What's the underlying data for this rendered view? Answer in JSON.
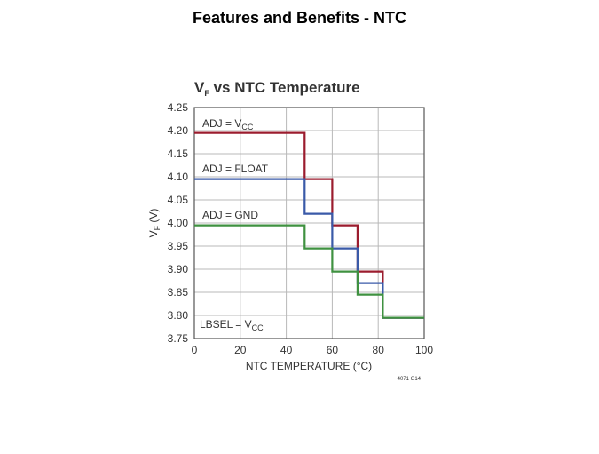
{
  "slide": {
    "title": "Features and Benefits - NTC"
  },
  "chart_data": {
    "type": "line",
    "title": "VF vs NTC Temperature",
    "title_main": "V",
    "title_sub": "F",
    "title_rest": " vs NTC Temperature",
    "xlabel": "NTC TEMPERATURE (°C)",
    "ylabel": "VF (V)",
    "ylabel_main": "V",
    "ylabel_sub": "F",
    "ylabel_rest": " (V)",
    "xlim": [
      0,
      100
    ],
    "ylim": [
      3.75,
      4.25
    ],
    "x_ticks": [
      "0",
      "20",
      "40",
      "60",
      "80",
      "100"
    ],
    "y_ticks": [
      "4.25",
      "4.20",
      "4.15",
      "4.10",
      "4.05",
      "4.00",
      "3.95",
      "3.90",
      "3.85",
      "3.80",
      "3.75"
    ],
    "grid": true,
    "note": "4071 G14",
    "series": [
      {
        "name": "ADJ = VCC",
        "label_main": "ADJ = V",
        "label_sub": "CC",
        "color": "#9b1c2e",
        "points": [
          [
            0,
            4.195
          ],
          [
            48,
            4.195
          ],
          [
            48,
            4.095
          ],
          [
            60,
            4.095
          ],
          [
            60,
            3.995
          ],
          [
            71,
            3.995
          ],
          [
            71,
            3.895
          ],
          [
            82,
            3.895
          ],
          [
            82,
            3.795
          ],
          [
            100,
            3.795
          ]
        ]
      },
      {
        "name": "ADJ = FLOAT",
        "label_main": "ADJ = FLOAT",
        "label_sub": "",
        "color": "#3a5aa8",
        "points": [
          [
            0,
            4.095
          ],
          [
            48,
            4.095
          ],
          [
            48,
            4.02
          ],
          [
            60,
            4.02
          ],
          [
            60,
            3.945
          ],
          [
            71,
            3.945
          ],
          [
            71,
            3.87
          ],
          [
            82,
            3.87
          ],
          [
            82,
            3.795
          ],
          [
            100,
            3.795
          ]
        ]
      },
      {
        "name": "ADJ = GND",
        "label_main": "ADJ = GND",
        "label_sub": "",
        "color": "#3f9140",
        "points": [
          [
            0,
            3.995
          ],
          [
            48,
            3.995
          ],
          [
            48,
            3.945
          ],
          [
            60,
            3.945
          ],
          [
            60,
            3.895
          ],
          [
            71,
            3.895
          ],
          [
            71,
            3.845
          ],
          [
            82,
            3.845
          ],
          [
            82,
            3.795
          ],
          [
            100,
            3.795
          ]
        ]
      }
    ],
    "annotation": {
      "main": "LBSEL = V",
      "sub": "CC"
    }
  }
}
